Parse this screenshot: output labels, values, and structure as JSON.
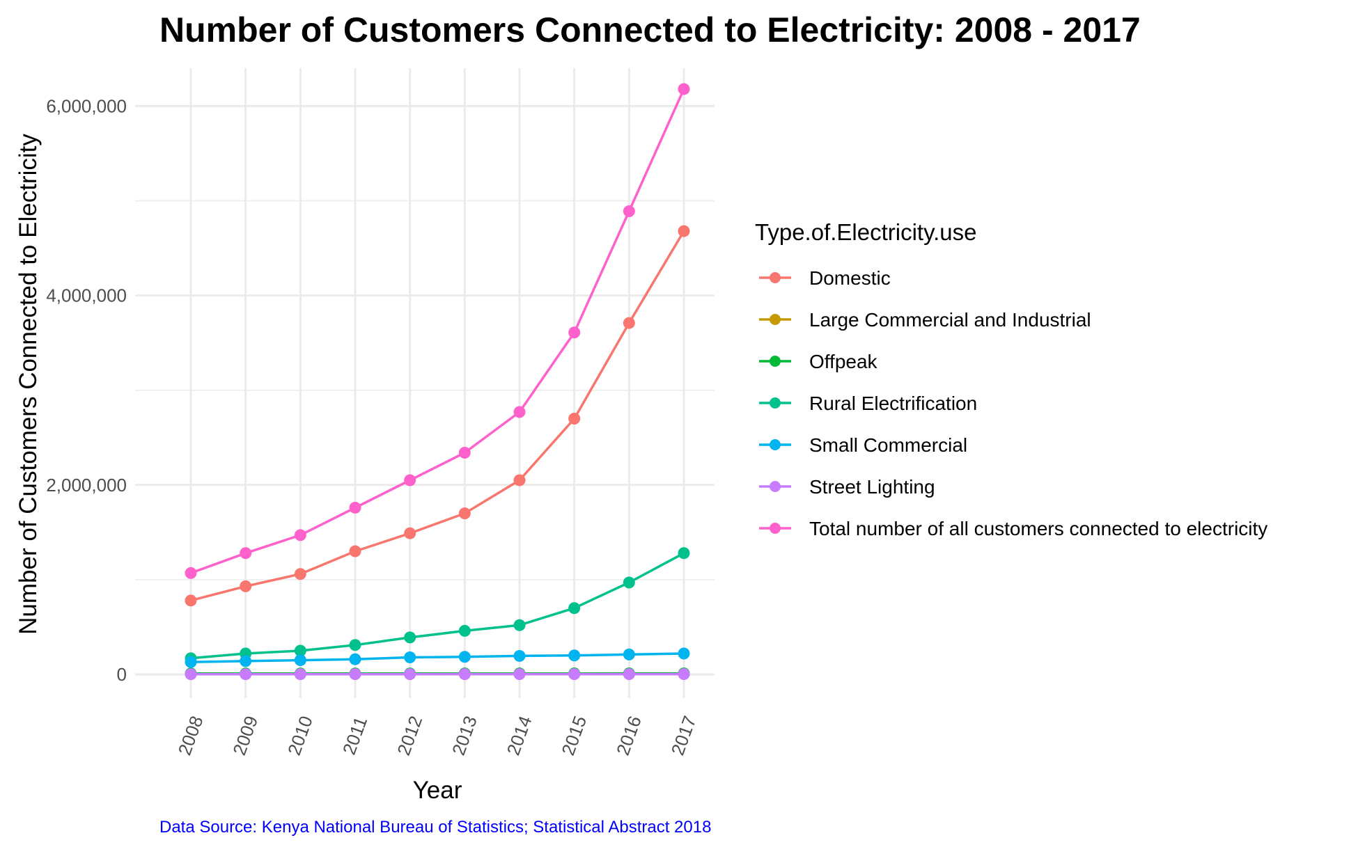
{
  "chart_data": {
    "type": "line",
    "title": "Number of Customers Connected to Electricity: 2008 - 2017",
    "xlabel": "Year",
    "ylabel": "Number of Customers Connected to Electricity",
    "x": [
      "2008",
      "2009",
      "2010",
      "2011",
      "2012",
      "2013",
      "2014",
      "2015",
      "2016",
      "2017"
    ],
    "ylim": [
      -250000,
      6400000
    ],
    "yticks": [
      0,
      2000000,
      4000000,
      6000000
    ],
    "ytick_labels": [
      "0",
      "2,000,000",
      "4,000,000",
      "6,000,000"
    ],
    "y_minor_gridlines": [
      1000000,
      3000000,
      5000000
    ],
    "grid": true,
    "legend": {
      "title": "Type.of.Electricity.use",
      "placement": "right"
    },
    "series": [
      {
        "name": "Domestic",
        "color": "#F8766D",
        "values": [
          780000,
          930000,
          1060000,
          1300000,
          1490000,
          1700000,
          2050000,
          2700000,
          3710000,
          4680000
        ]
      },
      {
        "name": "Large Commercial and Industrial",
        "color": "#C49A00",
        "values": [
          3000,
          3100,
          3300,
          3500,
          3800,
          4000,
          4200,
          4500,
          4800,
          5000
        ]
      },
      {
        "name": "Offpeak",
        "color": "#00BA38",
        "values": [
          9000,
          9100,
          9200,
          9300,
          9400,
          9500,
          9600,
          9700,
          9800,
          9900
        ]
      },
      {
        "name": "Rural Electrification",
        "color": "#00C08B",
        "values": [
          170000,
          220000,
          250000,
          310000,
          390000,
          460000,
          520000,
          700000,
          970000,
          1280000
        ]
      },
      {
        "name": "Small Commercial",
        "color": "#00B4F0",
        "values": [
          130000,
          140000,
          150000,
          160000,
          180000,
          185000,
          195000,
          200000,
          210000,
          220000
        ]
      },
      {
        "name": "Street Lighting",
        "color": "#C77CFF",
        "values": [
          2000,
          2100,
          2200,
          2300,
          2400,
          2500,
          2600,
          2700,
          2800,
          2900
        ]
      },
      {
        "name": "Total number of all customers connected to electricity",
        "color": "#FF61CC",
        "values": [
          1070000,
          1280000,
          1470000,
          1760000,
          2050000,
          2340000,
          2770000,
          3610000,
          4890000,
          6180000
        ]
      }
    ],
    "caption": "Data Source: Kenya National Bureau of Statistics; Statistical Abstract 2018",
    "caption_color": "#0000FF"
  }
}
